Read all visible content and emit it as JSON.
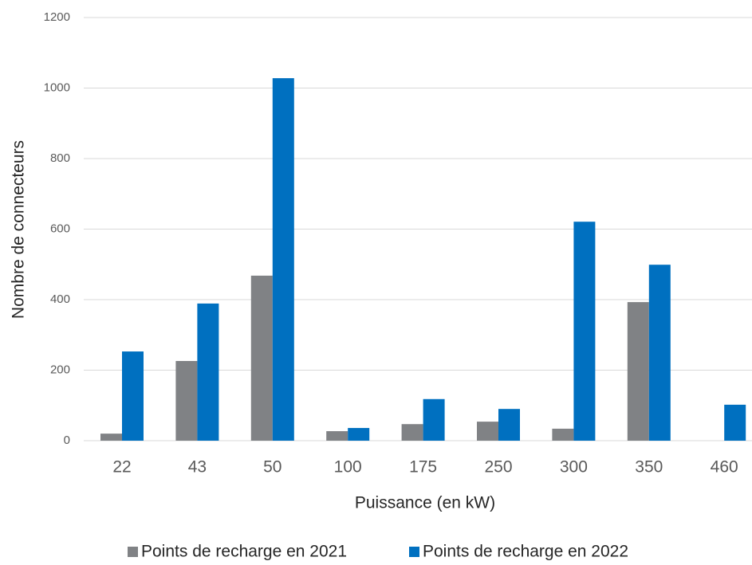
{
  "chart_data": {
    "type": "bar",
    "x_label": "Puissance (en kW)",
    "y_label": "Nombre de connecteurs",
    "categories": [
      "22",
      "43",
      "50",
      "100",
      "175",
      "250",
      "300",
      "350",
      "460"
    ],
    "series": [
      {
        "name": "Points de recharge en 2021",
        "color": "#808285",
        "values": [
          20,
          226,
          468,
          27,
          47,
          54,
          34,
          393,
          null
        ]
      },
      {
        "name": "Points de recharge en 2022",
        "color": "#0070c0",
        "values": [
          253,
          389,
          1028,
          36,
          118,
          90,
          621,
          499,
          102
        ]
      }
    ],
    "ylim": [
      0,
      1200
    ],
    "yticks": [
      0,
      200,
      400,
      600,
      800,
      1000,
      1200
    ],
    "grid": true,
    "legend": "bottom"
  }
}
